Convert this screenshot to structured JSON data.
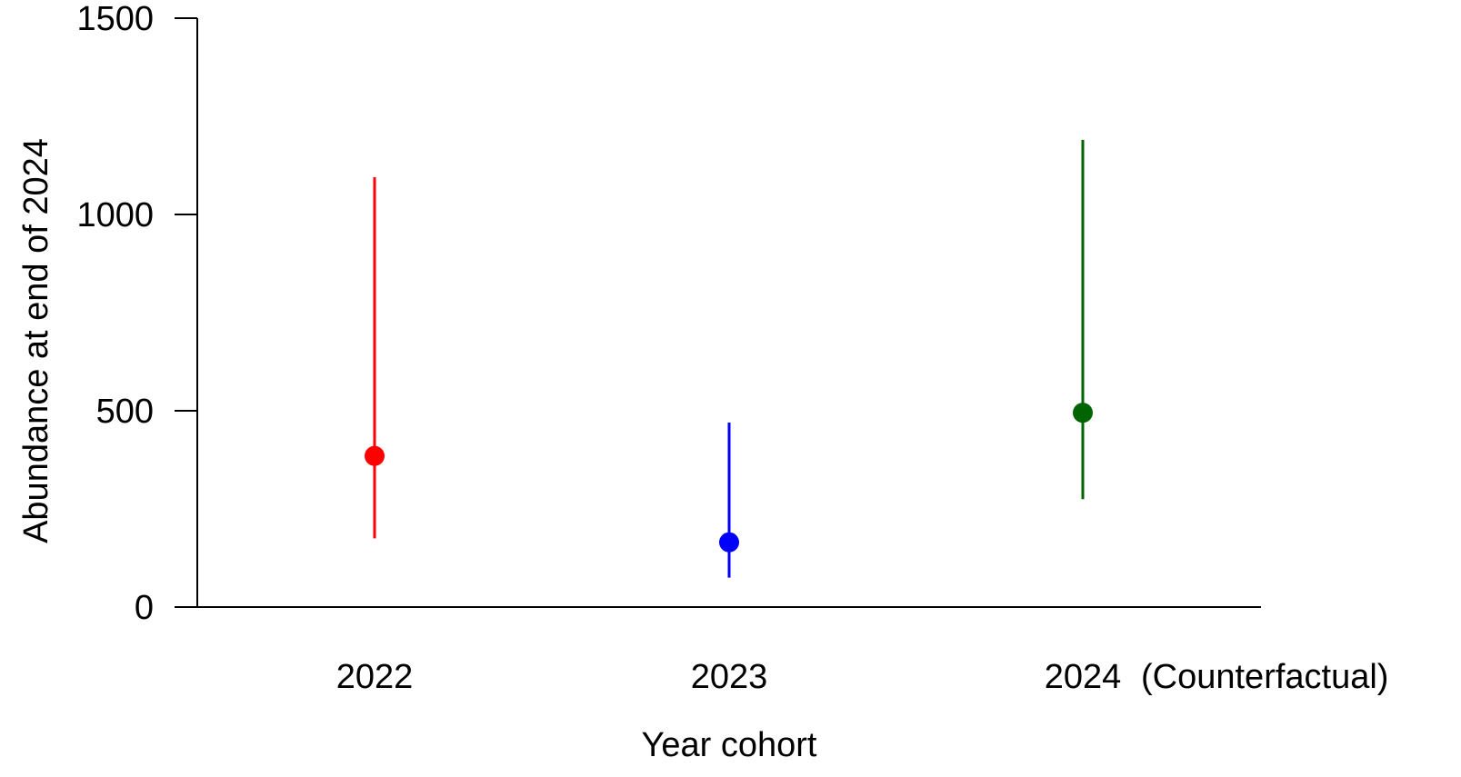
{
  "chart_data": {
    "type": "scatter",
    "categories": [
      "2022",
      "2023",
      "2024"
    ],
    "values": [
      385,
      165,
      495
    ],
    "lower": [
      175,
      75,
      275
    ],
    "upper": [
      1095,
      470,
      1190
    ],
    "colors": [
      "#ff0000",
      "#0000ff",
      "#006400"
    ],
    "annotation": "(Counterfactual)",
    "xlabel": "Year cohort",
    "ylabel": "Abundance at end of 2024",
    "ylim": [
      0,
      1500
    ],
    "yticks": [
      "0",
      "500",
      "1000",
      "1500"
    ],
    "ytick_values": [
      0,
      500,
      1000,
      1500
    ],
    "grid": false,
    "legend": "none"
  }
}
